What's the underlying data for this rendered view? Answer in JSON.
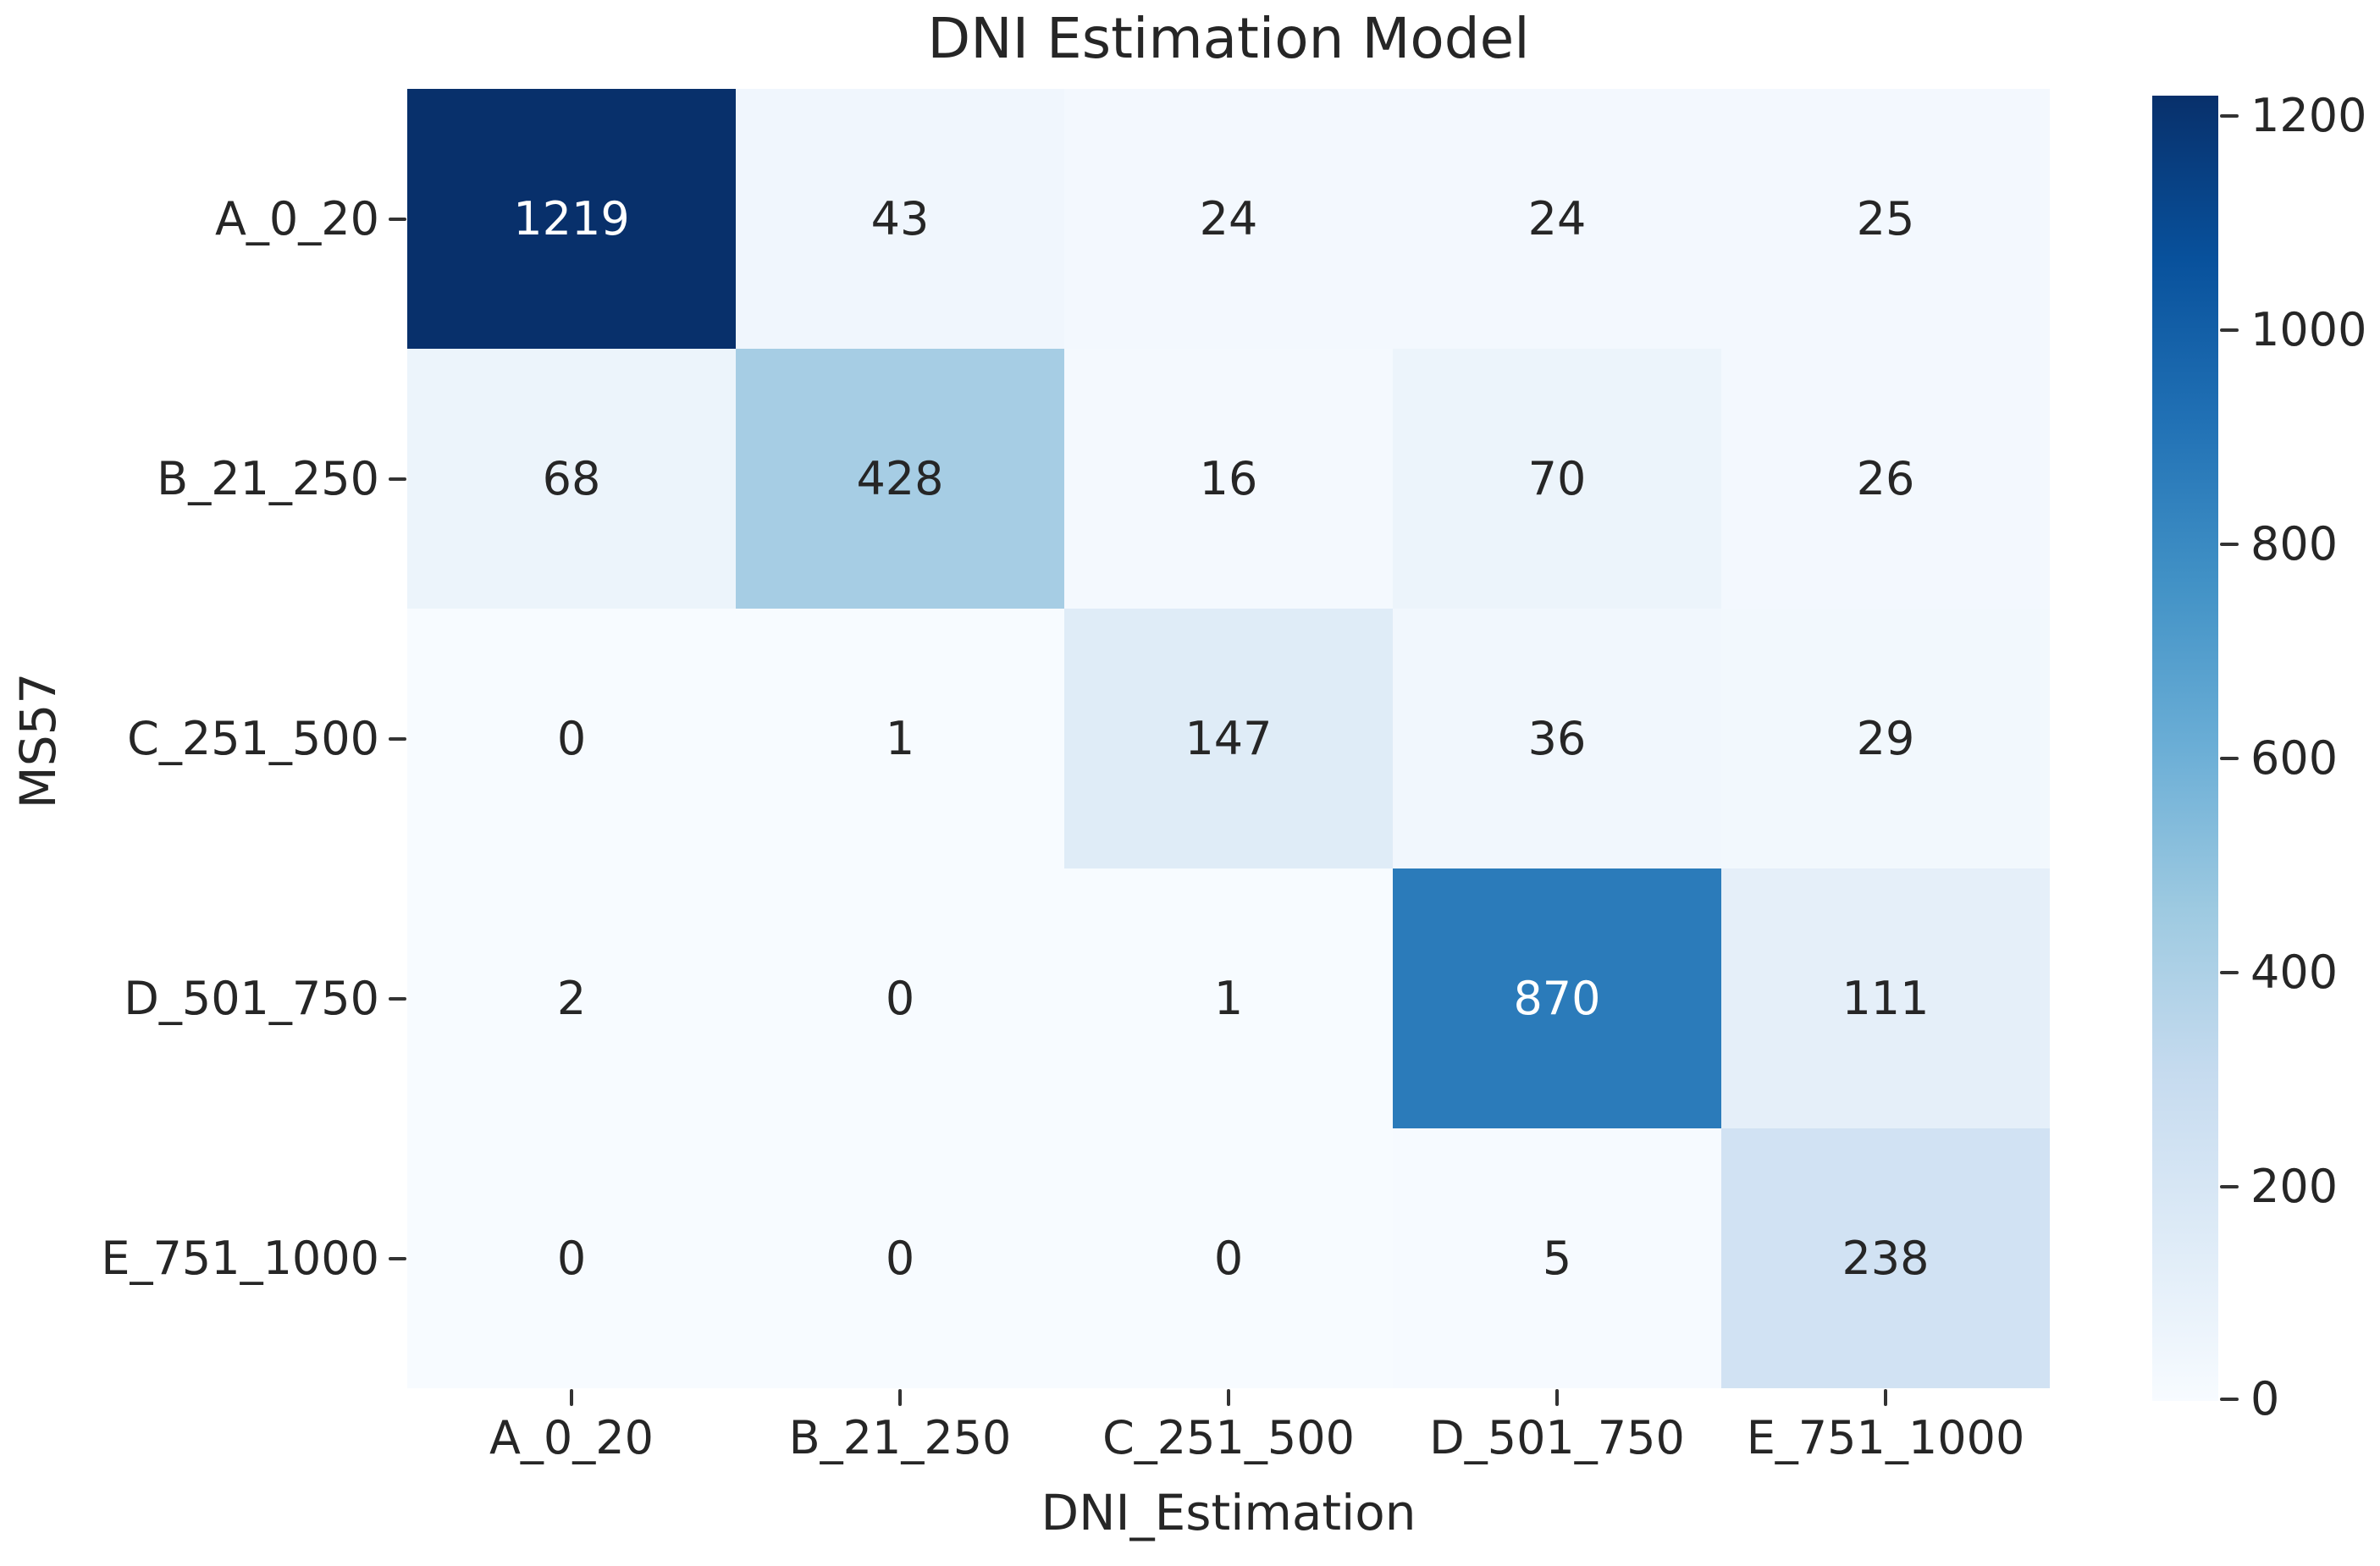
{
  "chart_data": {
    "type": "heatmap",
    "title": "DNI Estimation Model",
    "xlabel": "DNI_Estimation",
    "ylabel": "MS57",
    "x_categories": [
      "A_0_20",
      "B_21_250",
      "C_251_500",
      "D_501_750",
      "E_751_1000"
    ],
    "y_categories": [
      "A_0_20",
      "B_21_250",
      "C_251_500",
      "D_501_750",
      "E_751_1000"
    ],
    "values": [
      [
        1219,
        43,
        24,
        24,
        25
      ],
      [
        68,
        428,
        16,
        70,
        26
      ],
      [
        0,
        1,
        147,
        36,
        29
      ],
      [
        2,
        0,
        1,
        870,
        111
      ],
      [
        0,
        0,
        0,
        5,
        238
      ]
    ],
    "vmin": 0,
    "vmax": 1219,
    "colormap": "Blues",
    "colormap_stops": [
      "#f7fbff",
      "#deebf7",
      "#c6dbef",
      "#9ecae1",
      "#6baed6",
      "#4292c6",
      "#2171b5",
      "#08519c",
      "#08306b"
    ],
    "colorbar_ticks": [
      0,
      200,
      400,
      600,
      800,
      1000,
      1200
    ],
    "annotation_color_dark": "#262626",
    "annotation_color_light": "#ffffff",
    "grid": false,
    "legend_position": "colorbar-right"
  }
}
